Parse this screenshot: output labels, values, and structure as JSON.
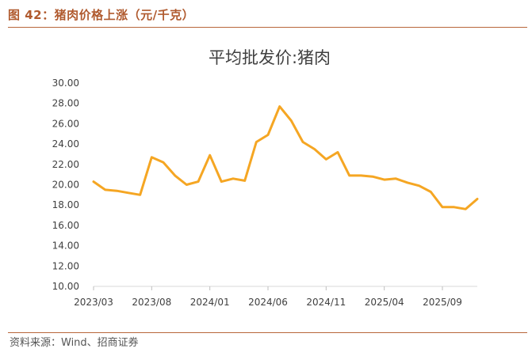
{
  "header": {
    "figure_label": "图 42：猪肉价格上涨（元/千克）"
  },
  "footer": {
    "source": "资料来源：Wind、招商证券"
  },
  "colors": {
    "accent": "#b05a2e",
    "line": "#f5a623",
    "axis": "#d9d9d9",
    "text": "#404040"
  },
  "chart_data": {
    "type": "line",
    "title": "平均批发价:猪肉",
    "xlabel": "",
    "ylabel": "",
    "ylim": [
      10,
      30
    ],
    "yticks": [
      "10.00",
      "12.00",
      "14.00",
      "16.00",
      "18.00",
      "20.00",
      "22.00",
      "24.00",
      "26.00",
      "28.00",
      "30.00"
    ],
    "xticks": [
      "2023/03",
      "2023/08",
      "2024/01",
      "2024/06",
      "2024/11",
      "2025/04",
      "2025/09"
    ],
    "grid": false,
    "legend": "none",
    "x": [
      "2023/03",
      "2023/04",
      "2023/05",
      "2023/06",
      "2023/07",
      "2023/08",
      "2023/09",
      "2023/10",
      "2023/11",
      "2023/12",
      "2024/01",
      "2024/02",
      "2024/03",
      "2024/04",
      "2024/05",
      "2024/06",
      "2024/07",
      "2024/08",
      "2024/09",
      "2024/10",
      "2024/11",
      "2024/12",
      "2025/01",
      "2025/02",
      "2025/03",
      "2025/04",
      "2025/05",
      "2025/06",
      "2025/07",
      "2025/08",
      "2025/09",
      "2025/10",
      "2025/11",
      "2025/12"
    ],
    "series": [
      {
        "values": [
          20.3,
          19.5,
          19.4,
          19.2,
          19.0,
          22.7,
          22.2,
          20.9,
          20.0,
          20.3,
          22.9,
          20.3,
          20.6,
          20.4,
          24.2,
          24.9,
          27.7,
          26.3,
          24.2,
          23.5,
          22.5,
          23.2,
          20.9,
          20.9,
          20.8,
          20.5,
          20.6,
          20.2,
          19.9,
          19.3,
          17.8,
          17.8,
          17.6,
          18.6
        ]
      }
    ]
  }
}
